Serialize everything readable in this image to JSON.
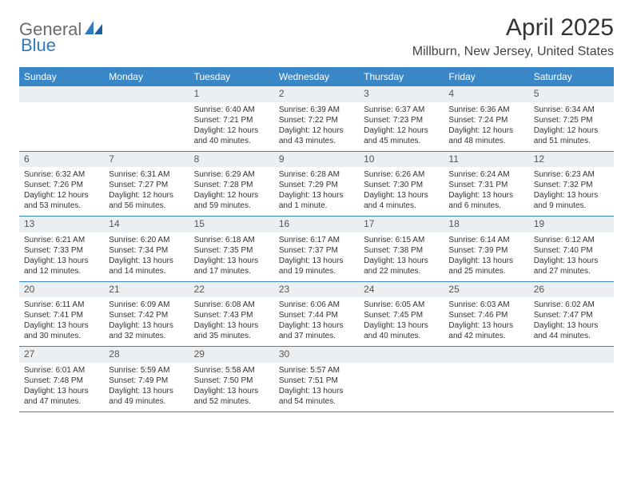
{
  "brand": {
    "text1": "General",
    "text2": "Blue"
  },
  "title": "April 2025",
  "location": "Millburn, New Jersey, United States",
  "colors": {
    "header_bg": "#3a87c8",
    "header_text": "#ffffff",
    "daybar_bg": "#eceff1",
    "border": "#3a87c8",
    "logo_gray": "#6b6b6b",
    "logo_blue": "#2f7ac0"
  },
  "weekdays": [
    "Sunday",
    "Monday",
    "Tuesday",
    "Wednesday",
    "Thursday",
    "Friday",
    "Saturday"
  ],
  "weeks": [
    [
      null,
      null,
      {
        "n": "1",
        "sr": "Sunrise: 6:40 AM",
        "ss": "Sunset: 7:21 PM",
        "dl": "Daylight: 12 hours and 40 minutes."
      },
      {
        "n": "2",
        "sr": "Sunrise: 6:39 AM",
        "ss": "Sunset: 7:22 PM",
        "dl": "Daylight: 12 hours and 43 minutes."
      },
      {
        "n": "3",
        "sr": "Sunrise: 6:37 AM",
        "ss": "Sunset: 7:23 PM",
        "dl": "Daylight: 12 hours and 45 minutes."
      },
      {
        "n": "4",
        "sr": "Sunrise: 6:36 AM",
        "ss": "Sunset: 7:24 PM",
        "dl": "Daylight: 12 hours and 48 minutes."
      },
      {
        "n": "5",
        "sr": "Sunrise: 6:34 AM",
        "ss": "Sunset: 7:25 PM",
        "dl": "Daylight: 12 hours and 51 minutes."
      }
    ],
    [
      {
        "n": "6",
        "sr": "Sunrise: 6:32 AM",
        "ss": "Sunset: 7:26 PM",
        "dl": "Daylight: 12 hours and 53 minutes."
      },
      {
        "n": "7",
        "sr": "Sunrise: 6:31 AM",
        "ss": "Sunset: 7:27 PM",
        "dl": "Daylight: 12 hours and 56 minutes."
      },
      {
        "n": "8",
        "sr": "Sunrise: 6:29 AM",
        "ss": "Sunset: 7:28 PM",
        "dl": "Daylight: 12 hours and 59 minutes."
      },
      {
        "n": "9",
        "sr": "Sunrise: 6:28 AM",
        "ss": "Sunset: 7:29 PM",
        "dl": "Daylight: 13 hours and 1 minute."
      },
      {
        "n": "10",
        "sr": "Sunrise: 6:26 AM",
        "ss": "Sunset: 7:30 PM",
        "dl": "Daylight: 13 hours and 4 minutes."
      },
      {
        "n": "11",
        "sr": "Sunrise: 6:24 AM",
        "ss": "Sunset: 7:31 PM",
        "dl": "Daylight: 13 hours and 6 minutes."
      },
      {
        "n": "12",
        "sr": "Sunrise: 6:23 AM",
        "ss": "Sunset: 7:32 PM",
        "dl": "Daylight: 13 hours and 9 minutes."
      }
    ],
    [
      {
        "n": "13",
        "sr": "Sunrise: 6:21 AM",
        "ss": "Sunset: 7:33 PM",
        "dl": "Daylight: 13 hours and 12 minutes."
      },
      {
        "n": "14",
        "sr": "Sunrise: 6:20 AM",
        "ss": "Sunset: 7:34 PM",
        "dl": "Daylight: 13 hours and 14 minutes."
      },
      {
        "n": "15",
        "sr": "Sunrise: 6:18 AM",
        "ss": "Sunset: 7:35 PM",
        "dl": "Daylight: 13 hours and 17 minutes."
      },
      {
        "n": "16",
        "sr": "Sunrise: 6:17 AM",
        "ss": "Sunset: 7:37 PM",
        "dl": "Daylight: 13 hours and 19 minutes."
      },
      {
        "n": "17",
        "sr": "Sunrise: 6:15 AM",
        "ss": "Sunset: 7:38 PM",
        "dl": "Daylight: 13 hours and 22 minutes."
      },
      {
        "n": "18",
        "sr": "Sunrise: 6:14 AM",
        "ss": "Sunset: 7:39 PM",
        "dl": "Daylight: 13 hours and 25 minutes."
      },
      {
        "n": "19",
        "sr": "Sunrise: 6:12 AM",
        "ss": "Sunset: 7:40 PM",
        "dl": "Daylight: 13 hours and 27 minutes."
      }
    ],
    [
      {
        "n": "20",
        "sr": "Sunrise: 6:11 AM",
        "ss": "Sunset: 7:41 PM",
        "dl": "Daylight: 13 hours and 30 minutes."
      },
      {
        "n": "21",
        "sr": "Sunrise: 6:09 AM",
        "ss": "Sunset: 7:42 PM",
        "dl": "Daylight: 13 hours and 32 minutes."
      },
      {
        "n": "22",
        "sr": "Sunrise: 6:08 AM",
        "ss": "Sunset: 7:43 PM",
        "dl": "Daylight: 13 hours and 35 minutes."
      },
      {
        "n": "23",
        "sr": "Sunrise: 6:06 AM",
        "ss": "Sunset: 7:44 PM",
        "dl": "Daylight: 13 hours and 37 minutes."
      },
      {
        "n": "24",
        "sr": "Sunrise: 6:05 AM",
        "ss": "Sunset: 7:45 PM",
        "dl": "Daylight: 13 hours and 40 minutes."
      },
      {
        "n": "25",
        "sr": "Sunrise: 6:03 AM",
        "ss": "Sunset: 7:46 PM",
        "dl": "Daylight: 13 hours and 42 minutes."
      },
      {
        "n": "26",
        "sr": "Sunrise: 6:02 AM",
        "ss": "Sunset: 7:47 PM",
        "dl": "Daylight: 13 hours and 44 minutes."
      }
    ],
    [
      {
        "n": "27",
        "sr": "Sunrise: 6:01 AM",
        "ss": "Sunset: 7:48 PM",
        "dl": "Daylight: 13 hours and 47 minutes."
      },
      {
        "n": "28",
        "sr": "Sunrise: 5:59 AM",
        "ss": "Sunset: 7:49 PM",
        "dl": "Daylight: 13 hours and 49 minutes."
      },
      {
        "n": "29",
        "sr": "Sunrise: 5:58 AM",
        "ss": "Sunset: 7:50 PM",
        "dl": "Daylight: 13 hours and 52 minutes."
      },
      {
        "n": "30",
        "sr": "Sunrise: 5:57 AM",
        "ss": "Sunset: 7:51 PM",
        "dl": "Daylight: 13 hours and 54 minutes."
      },
      null,
      null,
      null
    ]
  ]
}
